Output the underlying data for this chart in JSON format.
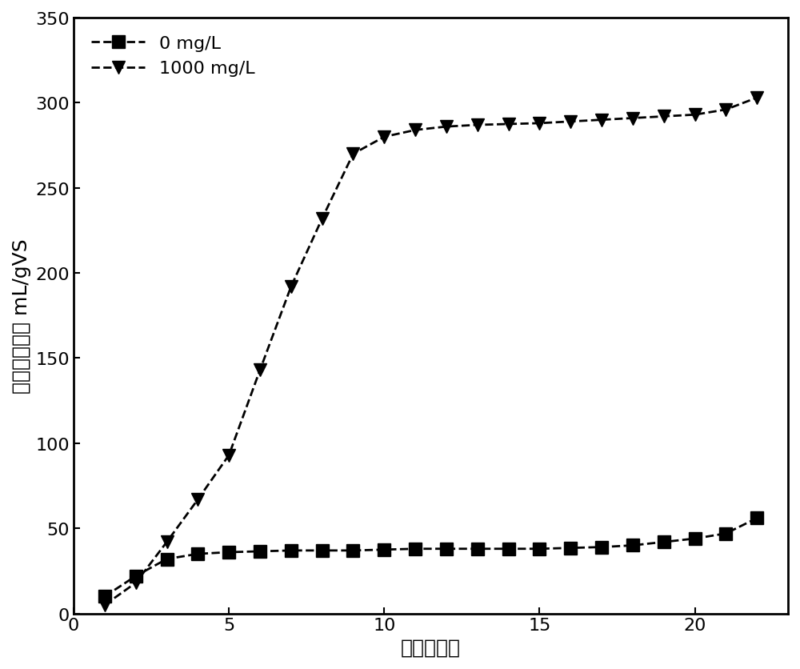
{
  "series1_label": "0 mg/L",
  "series2_label": "1000 mg/L",
  "series1_x": [
    1,
    2,
    3,
    4,
    5,
    6,
    7,
    8,
    9,
    10,
    11,
    12,
    13,
    14,
    15,
    16,
    17,
    18,
    19,
    20,
    21,
    22
  ],
  "series1_y": [
    10,
    22,
    32,
    35,
    36,
    36.5,
    37,
    37,
    37,
    37.5,
    38,
    38,
    38,
    38,
    38,
    38.5,
    39,
    40,
    42,
    44,
    47,
    56
  ],
  "series2_x": [
    1,
    2,
    3,
    4,
    5,
    6,
    7,
    8,
    9,
    10,
    11,
    12,
    13,
    14,
    15,
    16,
    17,
    18,
    19,
    20,
    21,
    22
  ],
  "series2_y": [
    5,
    18,
    42,
    67,
    93,
    143,
    192,
    232,
    270,
    280,
    284,
    286,
    287,
    287.5,
    288,
    289,
    290,
    291,
    292,
    293,
    296,
    303
  ],
  "xlabel": "时间（天）",
  "ylabel": "累计甲烷产量 mL/gVS",
  "xlim": [
    0,
    23
  ],
  "ylim": [
    0,
    350
  ],
  "xticks": [
    0,
    5,
    10,
    15,
    20
  ],
  "yticks": [
    0,
    50,
    100,
    150,
    200,
    250,
    300,
    350
  ],
  "line_color": "#000000",
  "line_style": "--",
  "marker1": "s",
  "marker2": "v",
  "markersize": 11,
  "linewidth": 2.0,
  "legend_fontsize": 16,
  "axis_fontsize": 18,
  "tick_fontsize": 16,
  "figure_width": 10.0,
  "figure_height": 8.37,
  "dpi": 100
}
